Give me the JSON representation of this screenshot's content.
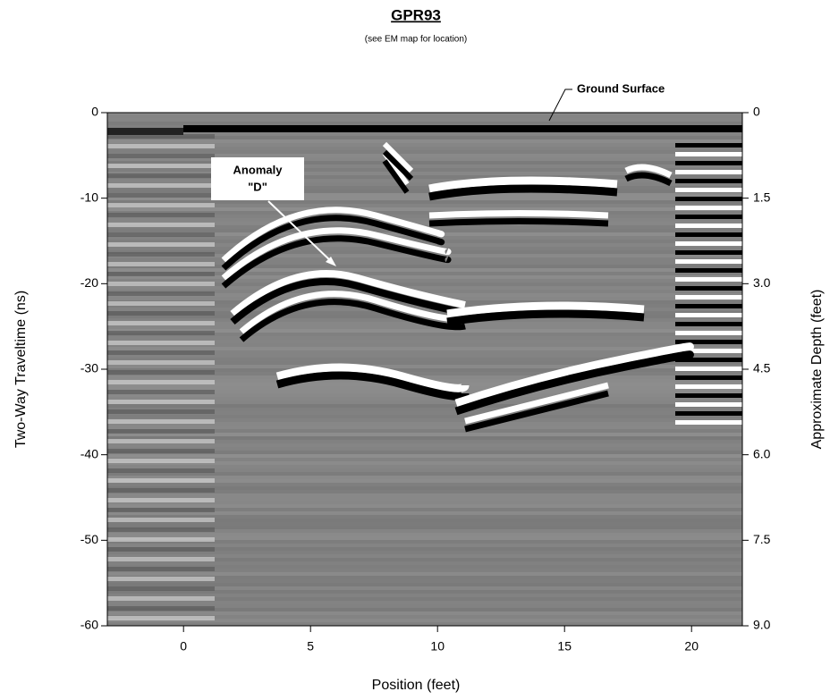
{
  "chart_data": {
    "type": "radargram",
    "title": "GPR93",
    "subtitle": "(see EM map for location)",
    "x_label": "Position (feet)",
    "y_label": "Two-Way Traveltime (ns)",
    "y2_label": "Approximate Depth (feet)",
    "xlim": [
      -3,
      22
    ],
    "xticks": [
      0,
      5,
      10,
      15,
      20
    ],
    "ylim": [
      -60,
      0
    ],
    "yticks": [
      0,
      -10,
      -20,
      -30,
      -40,
      -50,
      -60
    ],
    "y2lim": [
      9,
      0
    ],
    "y2ticks": [
      0,
      {
        "value": 1.5,
        "label": "1.5"
      },
      {
        "value": 3,
        "label": "3.0"
      },
      {
        "value": 4.5,
        "label": "4.5"
      },
      {
        "value": 6,
        "label": "6.0"
      },
      {
        "value": 7.5,
        "label": "7.5"
      },
      {
        "value": 9,
        "label": "9.0"
      }
    ],
    "grid": false,
    "annotations": [
      {
        "lines": [
          "Anomaly",
          "\"D\""
        ]
      },
      {
        "lines": [
          "Ground Surface"
        ]
      }
    ]
  }
}
